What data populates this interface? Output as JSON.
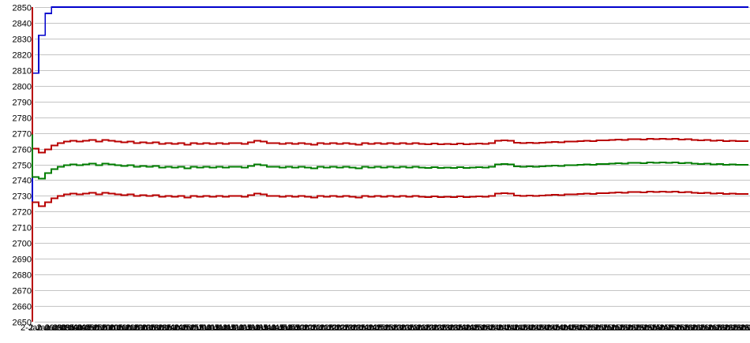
{
  "chart_data": {
    "type": "line",
    "title": "",
    "xlabel": "",
    "ylabel": "",
    "ylim": [
      2650,
      2850
    ],
    "y_tick_step": 10,
    "grid": "horizontal",
    "legend": "none",
    "background_color": "#ffffff",
    "gridline_color": "#c4c4c4",
    "axis_text_color": "#000000",
    "y_tick_labels": [
      "2850",
      "2840",
      "2830",
      "2820",
      "2810",
      "2800",
      "2790",
      "2780",
      "2770",
      "2760",
      "2750",
      "2740",
      "2730",
      "2720",
      "2710",
      "2700",
      "2690",
      "2680",
      "2670",
      "2660",
      "2650"
    ],
    "x_tick_prefix": "2-Jan",
    "x_tick_labels": [
      "09:30",
      "09:35",
      "09:40",
      "09:45",
      "09:50",
      "09:55",
      "10:00",
      "10:05",
      "10:10",
      "10:15",
      "10:20",
      "10:25",
      "10:30",
      "10:35",
      "10:40",
      "10:45",
      "10:50",
      "10:55",
      "11:00",
      "11:05",
      "11:10",
      "11:15",
      "11:20",
      "11:25",
      "11:30",
      "11:35",
      "11:40",
      "11:45",
      "11:50",
      "11:55",
      "12:00",
      "12:05",
      "12:10",
      "12:15",
      "12:20",
      "12:25",
      "12:30",
      "12:35",
      "12:40",
      "12:45",
      "12:50",
      "12:55",
      "13:00",
      "13:05",
      "13:10",
      "13:15",
      "13:20",
      "13:25",
      "13:30",
      "13:35",
      "13:40",
      "13:45",
      "13:50",
      "13:55",
      "14:00",
      "14:05",
      "14:10",
      "14:15",
      "14:20",
      "14:25",
      "14:30",
      "14:35",
      "14:40",
      "14:45",
      "14:50",
      "14:55",
      "15:00",
      "15:05",
      "15:10",
      "15:15",
      "15:20",
      "15:25",
      "15:30",
      "15:35",
      "15:40",
      "15:45",
      "15:50",
      "15:55",
      "16:00",
      "16:05",
      "16:10",
      "16:15",
      "16:20",
      "16:25",
      "16:30",
      "16:35",
      "16:40",
      "16:45",
      "16:50",
      "16:55",
      "17:00"
    ],
    "points_per_series": 114,
    "series": [
      {
        "name": "blue-line",
        "color": "#0000cc",
        "width": 1.6,
        "initial_values": [
          2650,
          2808,
          2832,
          2846
        ],
        "constant_after": 2850
      },
      {
        "name": "upper-red-line",
        "color": "#b80000",
        "width": 2,
        "values": [
          2850,
          2760,
          2757.5,
          2759.5,
          2762,
          2763.5,
          2764.5,
          2765,
          2764.5,
          2765,
          2765.5,
          2764.5,
          2765.5,
          2765,
          2764.5,
          2764,
          2764.5,
          2763.5,
          2764,
          2763.5,
          2764,
          2763,
          2763.5,
          2763,
          2763.5,
          2762.5,
          2763.5,
          2763,
          2763.5,
          2763,
          2763.5,
          2763,
          2763.5,
          2763.5,
          2763,
          2764,
          2765,
          2764.5,
          2763.5,
          2763.5,
          2763,
          2763.5,
          2763,
          2763.5,
          2763,
          2762.5,
          2763.5,
          2763,
          2763.5,
          2763,
          2763.5,
          2763,
          2762.5,
          2763.5,
          2763,
          2763.5,
          2763,
          2763.5,
          2763,
          2763.5,
          2763,
          2763.5,
          2763,
          2762.8,
          2763.2,
          2762.8,
          2763,
          2762.8,
          2763.2,
          2762.8,
          2763,
          2763.2,
          2763,
          2763.5,
          2765,
          2765.2,
          2765,
          2763.8,
          2763.5,
          2763.8,
          2763.5,
          2763.8,
          2764,
          2764.2,
          2764,
          2764.5,
          2764.5,
          2764.8,
          2765,
          2764.8,
          2765.2,
          2765.3,
          2765.5,
          2765.8,
          2765.5,
          2766,
          2766,
          2765.8,
          2766.2,
          2766,
          2766.3,
          2766,
          2766.2,
          2765.8,
          2766,
          2765.5,
          2765.3,
          2765.5,
          2765,
          2765.2,
          2764.8,
          2765,
          2764.8,
          2764.8
        ]
      },
      {
        "name": "green-line",
        "color": "#007d00",
        "width": 2,
        "values": [
          2769,
          2742,
          2741,
          2744.5,
          2747,
          2748.5,
          2749.5,
          2750,
          2749.5,
          2750,
          2750.5,
          2749.5,
          2750.5,
          2750,
          2749.5,
          2749,
          2749.5,
          2748.5,
          2749,
          2748.5,
          2749,
          2748,
          2748.5,
          2748,
          2748.5,
          2747.5,
          2748.5,
          2748,
          2748.5,
          2748,
          2748.5,
          2748,
          2748.5,
          2748.5,
          2748,
          2749,
          2750,
          2749.5,
          2748.5,
          2748.5,
          2748,
          2748.5,
          2748,
          2748.5,
          2748,
          2747.5,
          2748.5,
          2748,
          2748.5,
          2748,
          2748.5,
          2748,
          2747.5,
          2748.5,
          2748,
          2748.5,
          2748,
          2748.5,
          2748,
          2748.5,
          2748,
          2748.5,
          2748,
          2747.8,
          2748.2,
          2747.8,
          2748,
          2747.8,
          2748.2,
          2747.8,
          2748,
          2748.2,
          2748,
          2748.5,
          2750,
          2750.2,
          2750,
          2748.8,
          2748.5,
          2748.8,
          2748.5,
          2748.8,
          2749,
          2749.2,
          2749,
          2749.5,
          2749.5,
          2749.8,
          2750,
          2749.8,
          2750.2,
          2750.3,
          2750.5,
          2750.8,
          2750.5,
          2751,
          2751,
          2750.8,
          2751.2,
          2751,
          2751.3,
          2751,
          2751.2,
          2750.8,
          2751,
          2750.5,
          2750.3,
          2750.5,
          2750,
          2750.2,
          2749.8,
          2750,
          2749.8,
          2749.8
        ]
      },
      {
        "name": "lower-red-line",
        "color": "#b80000",
        "width": 2,
        "values": [
          2650,
          2726,
          2723.5,
          2726,
          2728.5,
          2730,
          2731,
          2731.5,
          2731,
          2731.5,
          2732,
          2731,
          2732,
          2731.5,
          2731,
          2730.5,
          2731,
          2730,
          2730.5,
          2730,
          2730.5,
          2729.5,
          2730,
          2729.5,
          2730,
          2729,
          2730,
          2729.5,
          2730,
          2729.5,
          2730,
          2729.5,
          2730,
          2730,
          2729.5,
          2730.5,
          2731.5,
          2731,
          2730,
          2730,
          2729.5,
          2730,
          2729.5,
          2730,
          2729.5,
          2729,
          2730,
          2729.5,
          2730,
          2729.5,
          2730,
          2729.5,
          2729,
          2730,
          2729.5,
          2730,
          2729.5,
          2730,
          2729.5,
          2730,
          2729.5,
          2730,
          2729.5,
          2729.3,
          2729.7,
          2729.3,
          2729.5,
          2729.3,
          2729.7,
          2729.3,
          2729.5,
          2729.7,
          2729.5,
          2730,
          2731.5,
          2731.7,
          2731.5,
          2730.3,
          2730,
          2730.3,
          2730,
          2730.3,
          2730.5,
          2730.7,
          2730.5,
          2731,
          2731,
          2731.3,
          2731.5,
          2731.3,
          2731.7,
          2731.8,
          2732,
          2732.3,
          2732,
          2732.5,
          2732.5,
          2732.3,
          2732.7,
          2732.5,
          2732.8,
          2732.5,
          2732.7,
          2732.3,
          2732.5,
          2732,
          2731.8,
          2732,
          2731.5,
          2731.7,
          2731.3,
          2731.5,
          2731.3,
          2731.3
        ]
      }
    ]
  },
  "layout_note_not_data": ""
}
